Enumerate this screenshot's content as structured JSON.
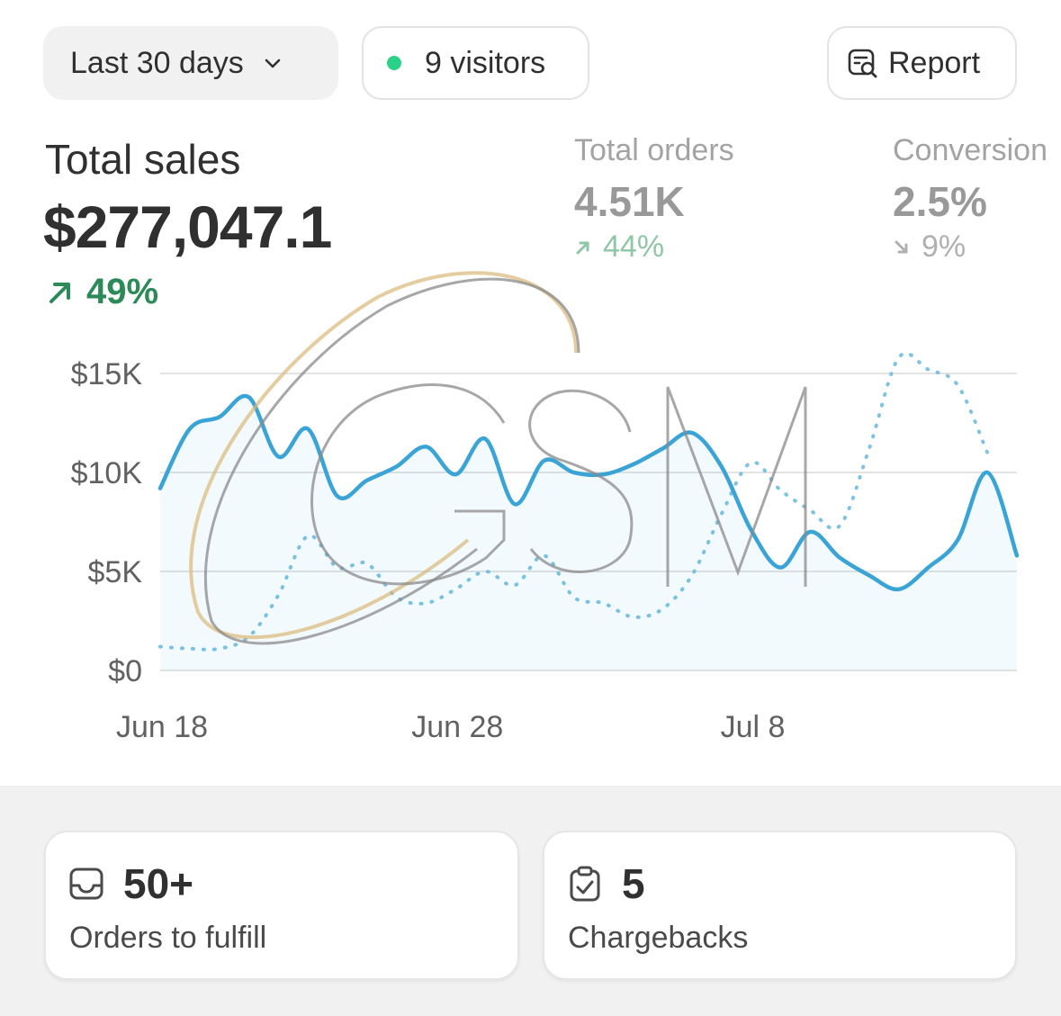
{
  "toolbar": {
    "date_range_label": "Last 30 days",
    "visitors_label": "9 visitors",
    "report_label": "Report"
  },
  "metrics": {
    "total_sales": {
      "label": "Total sales",
      "value": "$277,047.1",
      "change": "49%",
      "direction": "up"
    },
    "total_orders": {
      "label": "Total orders",
      "value": "4.51K",
      "change": "44%",
      "direction": "up"
    },
    "conversion": {
      "label": "Conversion",
      "value": "2.5%",
      "change": "9%",
      "direction": "down"
    }
  },
  "chart_data": {
    "type": "line",
    "xlabel": "",
    "ylabel": "",
    "ylim": [
      0,
      15000
    ],
    "y_ticks": [
      {
        "value": 0,
        "label": "$0"
      },
      {
        "value": 5000,
        "label": "$5K"
      },
      {
        "value": 10000,
        "label": "$10K"
      },
      {
        "value": 15000,
        "label": "$15K"
      }
    ],
    "x_tick_labels": [
      {
        "index": 0,
        "label": "Jun 18"
      },
      {
        "index": 10,
        "label": "Jun 28"
      },
      {
        "index": 20,
        "label": "Jul 8"
      }
    ],
    "grid": true,
    "series": [
      {
        "style": "solid",
        "color": "#3aa4d6",
        "values": [
          9200,
          12200,
          12800,
          13800,
          10800,
          12200,
          8800,
          9600,
          10300,
          11300,
          9900,
          11700,
          8400,
          10600,
          10000,
          9900,
          10400,
          11200,
          12000,
          10300,
          7100,
          5200,
          7000,
          5700,
          4800,
          4100,
          5200,
          6600,
          10000,
          5800
        ]
      },
      {
        "style": "dotted",
        "color": "#7fc3e2",
        "values": [
          1200,
          1100,
          1100,
          1700,
          3800,
          6800,
          5200,
          5400,
          3700,
          3400,
          4100,
          5000,
          4300,
          5800,
          3700,
          3400,
          2700,
          3100,
          4800,
          7900,
          10500,
          9100,
          8100,
          7300,
          11200,
          15800,
          15200,
          14400,
          11000
        ]
      }
    ]
  },
  "cards": [
    {
      "value": "50+",
      "label": "Orders to fulfill",
      "icon": "inbox-icon"
    },
    {
      "value": "5",
      "label": "Chargebacks",
      "icon": "clipboard-check-icon"
    }
  ]
}
